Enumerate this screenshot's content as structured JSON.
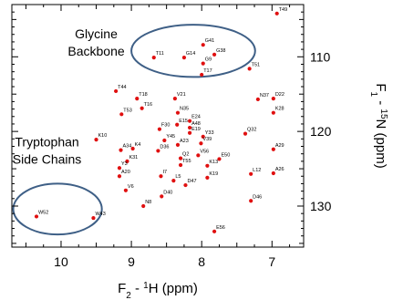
{
  "chart_data": {
    "type": "scatter",
    "title": "",
    "xlabel": {
      "base": "F",
      "sub": "2",
      "mid": " - ",
      "sup": "1",
      "tail": "H (ppm)"
    },
    "ylabel": {
      "base": "F",
      "sub": "1",
      "mid": " - ",
      "sup": "15",
      "tail": "N (ppm)"
    },
    "xlim": [
      10.7,
      6.55
    ],
    "ylim": [
      103,
      135.5
    ],
    "x_ticks": [
      10,
      9,
      8,
      7
    ],
    "x_tick_labels": [
      "10",
      "9",
      "8",
      "7"
    ],
    "y_ticks": [
      110,
      120,
      130
    ],
    "y_tick_labels": [
      "110",
      "120",
      "130"
    ],
    "grid": false,
    "legend": "none",
    "point_color": "#e01010",
    "ellipse_color": "#3e5f86",
    "annotations": [
      {
        "lines": [
          "Glycine",
          "Backbone"
        ],
        "x": 9.5,
        "y": 107.5
      },
      {
        "lines": [
          "Tryptophan",
          "Side Chains"
        ],
        "x": 10.2,
        "y": 122.0
      }
    ],
    "regions": [
      {
        "cx": 8.12,
        "cy": 109.2,
        "rx": 0.88,
        "ry": 3.5
      },
      {
        "cx": 10.05,
        "cy": 130.4,
        "rx": 0.63,
        "ry": 3.4
      }
    ],
    "points": [
      {
        "label": "T49",
        "x": 6.93,
        "y": 104.2
      },
      {
        "label": "G41",
        "x": 7.98,
        "y": 108.4
      },
      {
        "label": "G38",
        "x": 7.82,
        "y": 109.7
      },
      {
        "label": "T11",
        "x": 8.68,
        "y": 110.1
      },
      {
        "label": "G14",
        "x": 8.25,
        "y": 110.1
      },
      {
        "label": "G9",
        "x": 7.98,
        "y": 110.9
      },
      {
        "label": "T51",
        "x": 7.32,
        "y": 111.6
      },
      {
        "label": "T17",
        "x": 8.0,
        "y": 112.4
      },
      {
        "label": "T44",
        "x": 9.22,
        "y": 114.6
      },
      {
        "label": "V21",
        "x": 8.38,
        "y": 115.6
      },
      {
        "label": "N37",
        "x": 7.2,
        "y": 115.7
      },
      {
        "label": "D22",
        "x": 6.98,
        "y": 115.6
      },
      {
        "label": "T18",
        "x": 8.92,
        "y": 115.6
      },
      {
        "label": "T16",
        "x": 8.85,
        "y": 116.9
      },
      {
        "label": "T53",
        "x": 9.14,
        "y": 117.7
      },
      {
        "label": "N35",
        "x": 8.34,
        "y": 117.5
      },
      {
        "label": "K28",
        "x": 6.98,
        "y": 117.5
      },
      {
        "label": "E24",
        "x": 8.17,
        "y": 118.6
      },
      {
        "label": "E15",
        "x": 8.35,
        "y": 119.1
      },
      {
        "label": "F30",
        "x": 8.6,
        "y": 119.7
      },
      {
        "label": "A48",
        "x": 8.17,
        "y": 119.5
      },
      {
        "label": "E19",
        "x": 8.17,
        "y": 120.2
      },
      {
        "label": "Q32",
        "x": 7.38,
        "y": 120.3
      },
      {
        "label": "K10",
        "x": 9.5,
        "y": 121.1
      },
      {
        "label": "Y45",
        "x": 8.53,
        "y": 121.2
      },
      {
        "label": "Y33",
        "x": 7.98,
        "y": 120.7
      },
      {
        "label": "A23",
        "x": 8.34,
        "y": 121.8
      },
      {
        "label": "V39",
        "x": 8.01,
        "y": 121.6
      },
      {
        "label": "A34",
        "x": 9.15,
        "y": 122.5
      },
      {
        "label": "K4",
        "x": 8.98,
        "y": 122.3
      },
      {
        "label": "D36",
        "x": 8.62,
        "y": 122.6
      },
      {
        "label": "A29",
        "x": 6.98,
        "y": 122.4
      },
      {
        "label": "V56",
        "x": 8.05,
        "y": 123.2
      },
      {
        "label": "Q2",
        "x": 8.3,
        "y": 123.6
      },
      {
        "label": "E50",
        "x": 7.75,
        "y": 123.7
      },
      {
        "label": "K31",
        "x": 9.06,
        "y": 124.0
      },
      {
        "label": "T55",
        "x": 8.3,
        "y": 124.5
      },
      {
        "label": "K13",
        "x": 7.92,
        "y": 124.6
      },
      {
        "label": "Y3",
        "x": 9.17,
        "y": 124.9
      },
      {
        "label": "L12",
        "x": 7.3,
        "y": 125.7
      },
      {
        "label": "A26",
        "x": 6.98,
        "y": 125.6
      },
      {
        "label": "A20",
        "x": 9.17,
        "y": 126.0
      },
      {
        "label": "I7",
        "x": 8.58,
        "y": 126.0
      },
      {
        "label": "L5",
        "x": 8.4,
        "y": 126.6
      },
      {
        "label": "K19",
        "x": 7.92,
        "y": 126.2
      },
      {
        "label": "D47",
        "x": 8.23,
        "y": 127.2
      },
      {
        "label": "V6",
        "x": 9.08,
        "y": 127.9
      },
      {
        "label": "D40",
        "x": 8.57,
        "y": 128.7
      },
      {
        "label": "D46",
        "x": 7.3,
        "y": 129.3
      },
      {
        "label": "N8",
        "x": 8.83,
        "y": 130.0
      },
      {
        "label": "W43",
        "x": 9.54,
        "y": 131.6
      },
      {
        "label": "W52",
        "x": 10.35,
        "y": 131.4
      },
      {
        "label": "E56",
        "x": 7.82,
        "y": 133.4
      }
    ]
  }
}
